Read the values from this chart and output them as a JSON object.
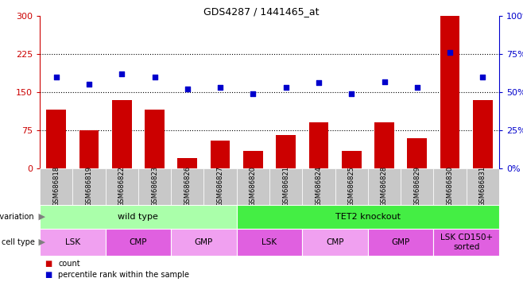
{
  "title": "GDS4287 / 1441465_at",
  "samples": [
    "GSM686818",
    "GSM686819",
    "GSM686822",
    "GSM686823",
    "GSM686826",
    "GSM686827",
    "GSM686820",
    "GSM686821",
    "GSM686824",
    "GSM686825",
    "GSM686828",
    "GSM686829",
    "GSM686830",
    "GSM686831"
  ],
  "counts": [
    115,
    75,
    135,
    115,
    20,
    55,
    35,
    65,
    90,
    35,
    90,
    60,
    300,
    135
  ],
  "percentiles": [
    60,
    55,
    62,
    60,
    52,
    53,
    49,
    53,
    56,
    49,
    57,
    53,
    76,
    60
  ],
  "bar_color": "#cc0000",
  "dot_color": "#0000cc",
  "ylim_left": [
    0,
    300
  ],
  "ylim_right": [
    0,
    100
  ],
  "yticks_left": [
    0,
    75,
    150,
    225,
    300
  ],
  "yticks_right": [
    0,
    25,
    50,
    75,
    100
  ],
  "hlines": [
    75,
    150,
    225
  ],
  "genotype_groups": [
    {
      "label": "wild type",
      "start": 0,
      "end": 6,
      "color": "#aaffaa"
    },
    {
      "label": "TET2 knockout",
      "start": 6,
      "end": 14,
      "color": "#44ee44"
    }
  ],
  "cell_type_groups": [
    {
      "label": "LSK",
      "start": 0,
      "end": 2,
      "color": "#f0a0f0"
    },
    {
      "label": "CMP",
      "start": 2,
      "end": 4,
      "color": "#e060e0"
    },
    {
      "label": "GMP",
      "start": 4,
      "end": 6,
      "color": "#f0a0f0"
    },
    {
      "label": "LSK",
      "start": 6,
      "end": 8,
      "color": "#e060e0"
    },
    {
      "label": "CMP",
      "start": 8,
      "end": 10,
      "color": "#f0a0f0"
    },
    {
      "label": "GMP",
      "start": 10,
      "end": 12,
      "color": "#e060e0"
    },
    {
      "label": "LSK CD150+\nsorted",
      "start": 12,
      "end": 14,
      "color": "#e060e0"
    }
  ],
  "tick_label_bg": "#c8c8c8",
  "bar_width": 0.6
}
